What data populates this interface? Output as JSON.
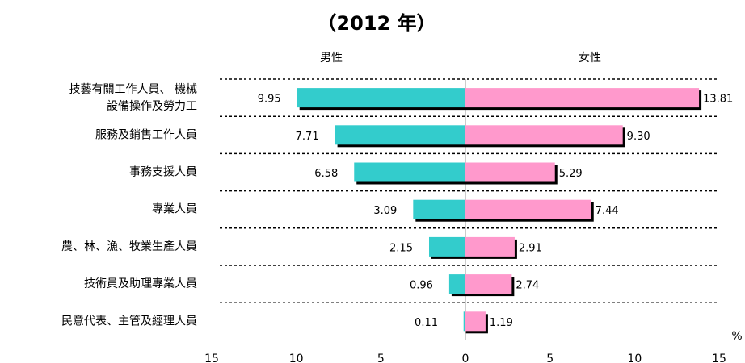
{
  "chart_data": {
    "type": "butterfly-bar",
    "title": "（2012 年）",
    "categories": [
      [
        "技藝有關工作人員、 機械",
        "設備操作及勞力工"
      ],
      "服務及銷售工作人員",
      "事務支援人員",
      "專業人員",
      "農、林、漁、牧業生產人員",
      "技術員及助理專業人員",
      "民意代表、主管及經理人員"
    ],
    "series": [
      {
        "name": "男性",
        "side": "left",
        "color": "#33cccc",
        "values": [
          9.95,
          7.71,
          6.58,
          3.09,
          2.15,
          0.96,
          0.11
        ]
      },
      {
        "name": "女性",
        "side": "right",
        "color": "#ff99cc",
        "values": [
          13.81,
          9.3,
          5.29,
          7.44,
          2.91,
          2.74,
          1.19
        ],
        "value_labels": [
          "13.81",
          "9.30",
          "5.29",
          "7.44",
          "2.91",
          "2.74",
          "1.19"
        ]
      }
    ],
    "x_unit": "%",
    "xlim": [
      -15,
      15
    ],
    "xticks": [
      {
        "value": -15,
        "label": "15"
      },
      {
        "value": -10,
        "label": "10"
      },
      {
        "value": -5,
        "label": "5"
      },
      0,
      5,
      10,
      15
    ]
  }
}
